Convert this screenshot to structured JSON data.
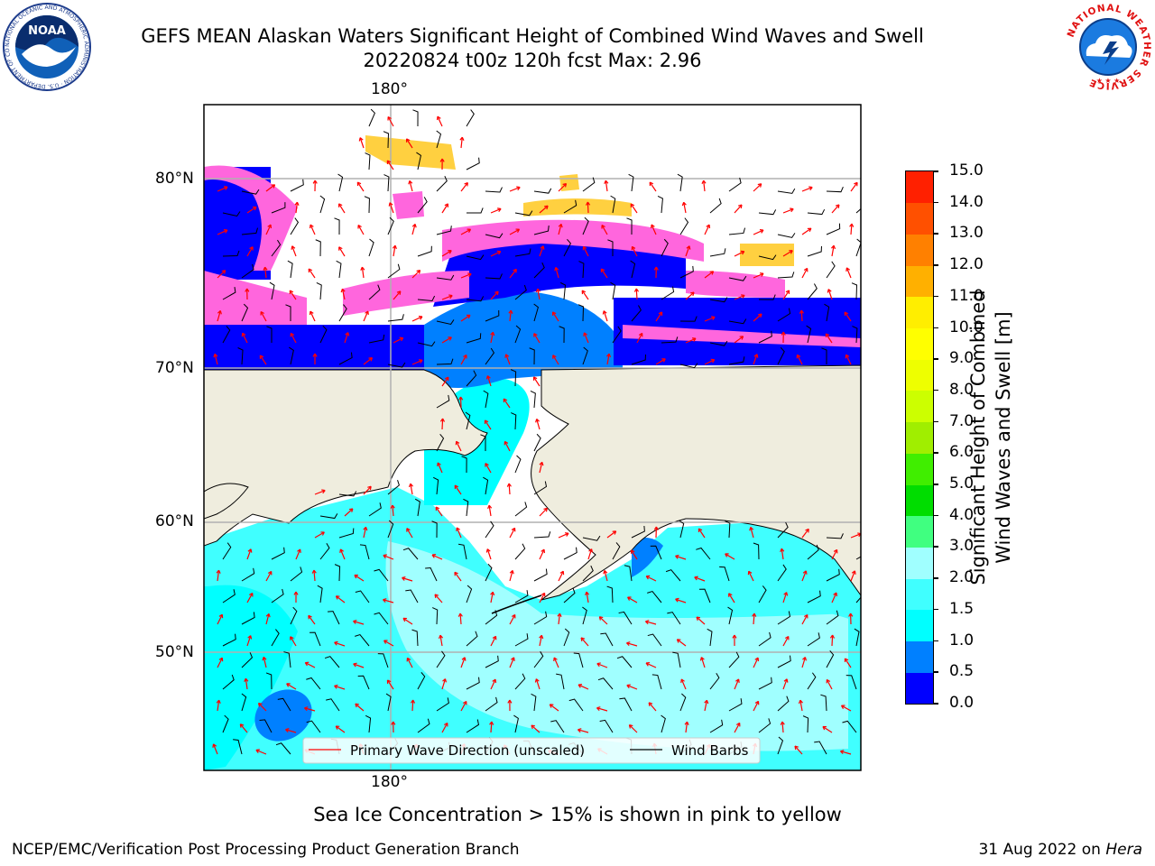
{
  "title": {
    "line1": "GEFS MEAN Alaskan Waters Significant Height of Combined Wind Waves and Swell",
    "line2": "20220824 t00z 120h fcst   Max: 2.96"
  },
  "logos": {
    "noaa": {
      "text": "NOAA",
      "ring_text": "NATIONAL OCEANIC AND ATMOSPHERIC ADMINISTRATION · U.S. DEPARTMENT OF COMMERCE",
      "icon": "noaa-logo-icon"
    },
    "nws": {
      "ring_text": "NATIONAL WEATHER SERVICE",
      "icon": "nws-logo-icon"
    }
  },
  "map": {
    "lon_label_top": "180°",
    "lon_label_bottom": "180°",
    "lat_labels": [
      "80°N",
      "70°N",
      "60°N",
      "50°N"
    ],
    "colors": {
      "land": "#efedde",
      "grid": "#b0b0b0",
      "wave_direction": "#ff0000",
      "wind_barb": "#000000"
    },
    "legend": {
      "wave_direction": "Primary Wave Direction (unscaled)",
      "wind_barbs": "Wind Barbs"
    }
  },
  "colorbar": {
    "label_line1": "Significant Height of Combined",
    "label_line2": "Wind Waves and Swell [m]",
    "ticks": [
      "15.0",
      "14.0",
      "13.0",
      "12.0",
      "11.0",
      "10.0",
      "9.0",
      "8.0",
      "7.0",
      "6.0",
      "5.0",
      "4.0",
      "3.0",
      "2.0",
      "1.5",
      "1.0",
      "0.5",
      "0.0"
    ],
    "colors": [
      "#0000ff",
      "#0080ff",
      "#00ffff",
      "#40ffff",
      "#a0ffff",
      "#40ff80",
      "#00dd00",
      "#40ee00",
      "#a0ee00",
      "#ccff00",
      "#eeff00",
      "#ffff00",
      "#ffee00",
      "#ffb000",
      "#ff8000",
      "#ff5000",
      "#ff2000",
      "#ff0000"
    ]
  },
  "note": "Sea Ice Concentration > 15% is shown in pink to yellow",
  "footer": {
    "left": "NCEP/EMC/Verification Post Processing Product Generation Branch",
    "right_date": "31 Aug 2022 on ",
    "right_host": "Hera"
  }
}
